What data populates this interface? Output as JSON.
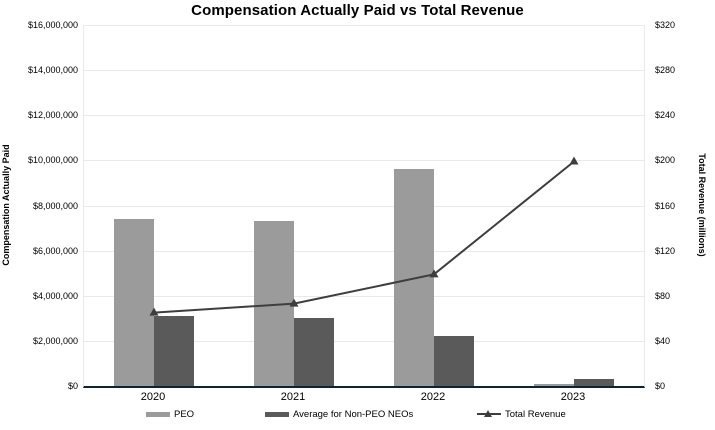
{
  "title": "Compensation Actually Paid vs Total Revenue",
  "left_axis": {
    "title": "Compensation Actually Paid",
    "tick_labels": [
      "$16,000,000",
      "$14,000,000",
      "$12,000,000",
      "$10,000,000",
      "$8,000,000",
      "$6,000,000",
      "$4,000,000",
      "$2,000,000",
      "$0"
    ],
    "range": [
      0,
      16000000
    ]
  },
  "right_axis": {
    "title": "Total Revenue (millions)",
    "tick_labels": [
      "$320",
      "$280",
      "$240",
      "$200",
      "$160",
      "$120",
      "$80",
      "$40",
      "$0"
    ],
    "range": [
      0,
      320
    ]
  },
  "x_axis": {
    "categories": [
      "2020",
      "2021",
      "2022",
      "2023"
    ]
  },
  "legend": {
    "items": [
      "PEO",
      "Average for Non-PEO NEOs",
      "Total Revenue"
    ]
  },
  "colors": {
    "peo_bar": "#9b9b9b",
    "non_peo_bar": "#5a5a5a",
    "revenue_line": "#3e3e3e",
    "gridline": "#e9e9e9",
    "axis_line": "#0f2333",
    "text": "#000000"
  },
  "chart_data": {
    "type": "combo-bar-line",
    "title": "Compensation Actually Paid vs Total Revenue",
    "categories": [
      "2020",
      "2021",
      "2022",
      "2023"
    ],
    "series": [
      {
        "name": "PEO",
        "type": "bar",
        "axis": "left",
        "color": "#9b9b9b",
        "values": [
          7400000,
          7300000,
          9600000,
          100000
        ]
      },
      {
        "name": "Average for Non-PEO NEOs",
        "type": "bar",
        "axis": "left",
        "color": "#5a5a5a",
        "values": [
          3100000,
          3000000,
          2200000,
          300000
        ]
      },
      {
        "name": "Total Revenue",
        "type": "line",
        "axis": "right",
        "color": "#3e3e3e",
        "marker": "triangle",
        "values": [
          65,
          73,
          99,
          199
        ]
      }
    ],
    "left_ylabel": "Compensation Actually Paid",
    "right_ylabel": "Total Revenue (millions)",
    "left_ylim": [
      0,
      16000000
    ],
    "right_ylim": [
      0,
      320
    ],
    "grid": true,
    "legend_position": "bottom"
  }
}
